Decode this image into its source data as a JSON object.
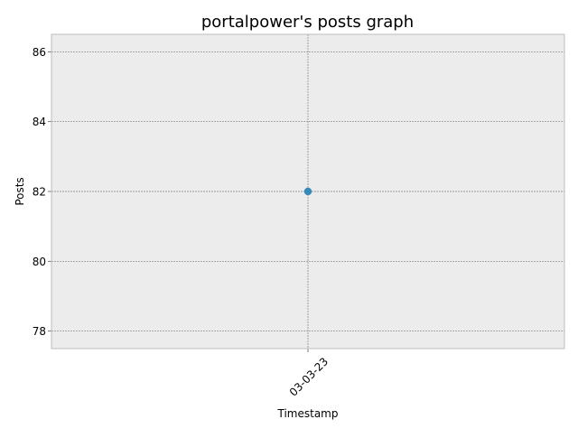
{
  "chart_data": {
    "type": "line",
    "title": "portalpower's posts graph",
    "xlabel": "Timestamp",
    "ylabel": "Posts",
    "categories": [
      "03-03-23"
    ],
    "series": [
      {
        "values": [
          82
        ],
        "color": "#348abd"
      }
    ],
    "ylim": [
      77.5,
      86.5
    ],
    "yticks": [
      78,
      80,
      82,
      84,
      86
    ],
    "grid": true,
    "style": {
      "plot_background": "#ececec",
      "frame_color": "#bcbcbc",
      "grid_color": "#808080"
    }
  }
}
